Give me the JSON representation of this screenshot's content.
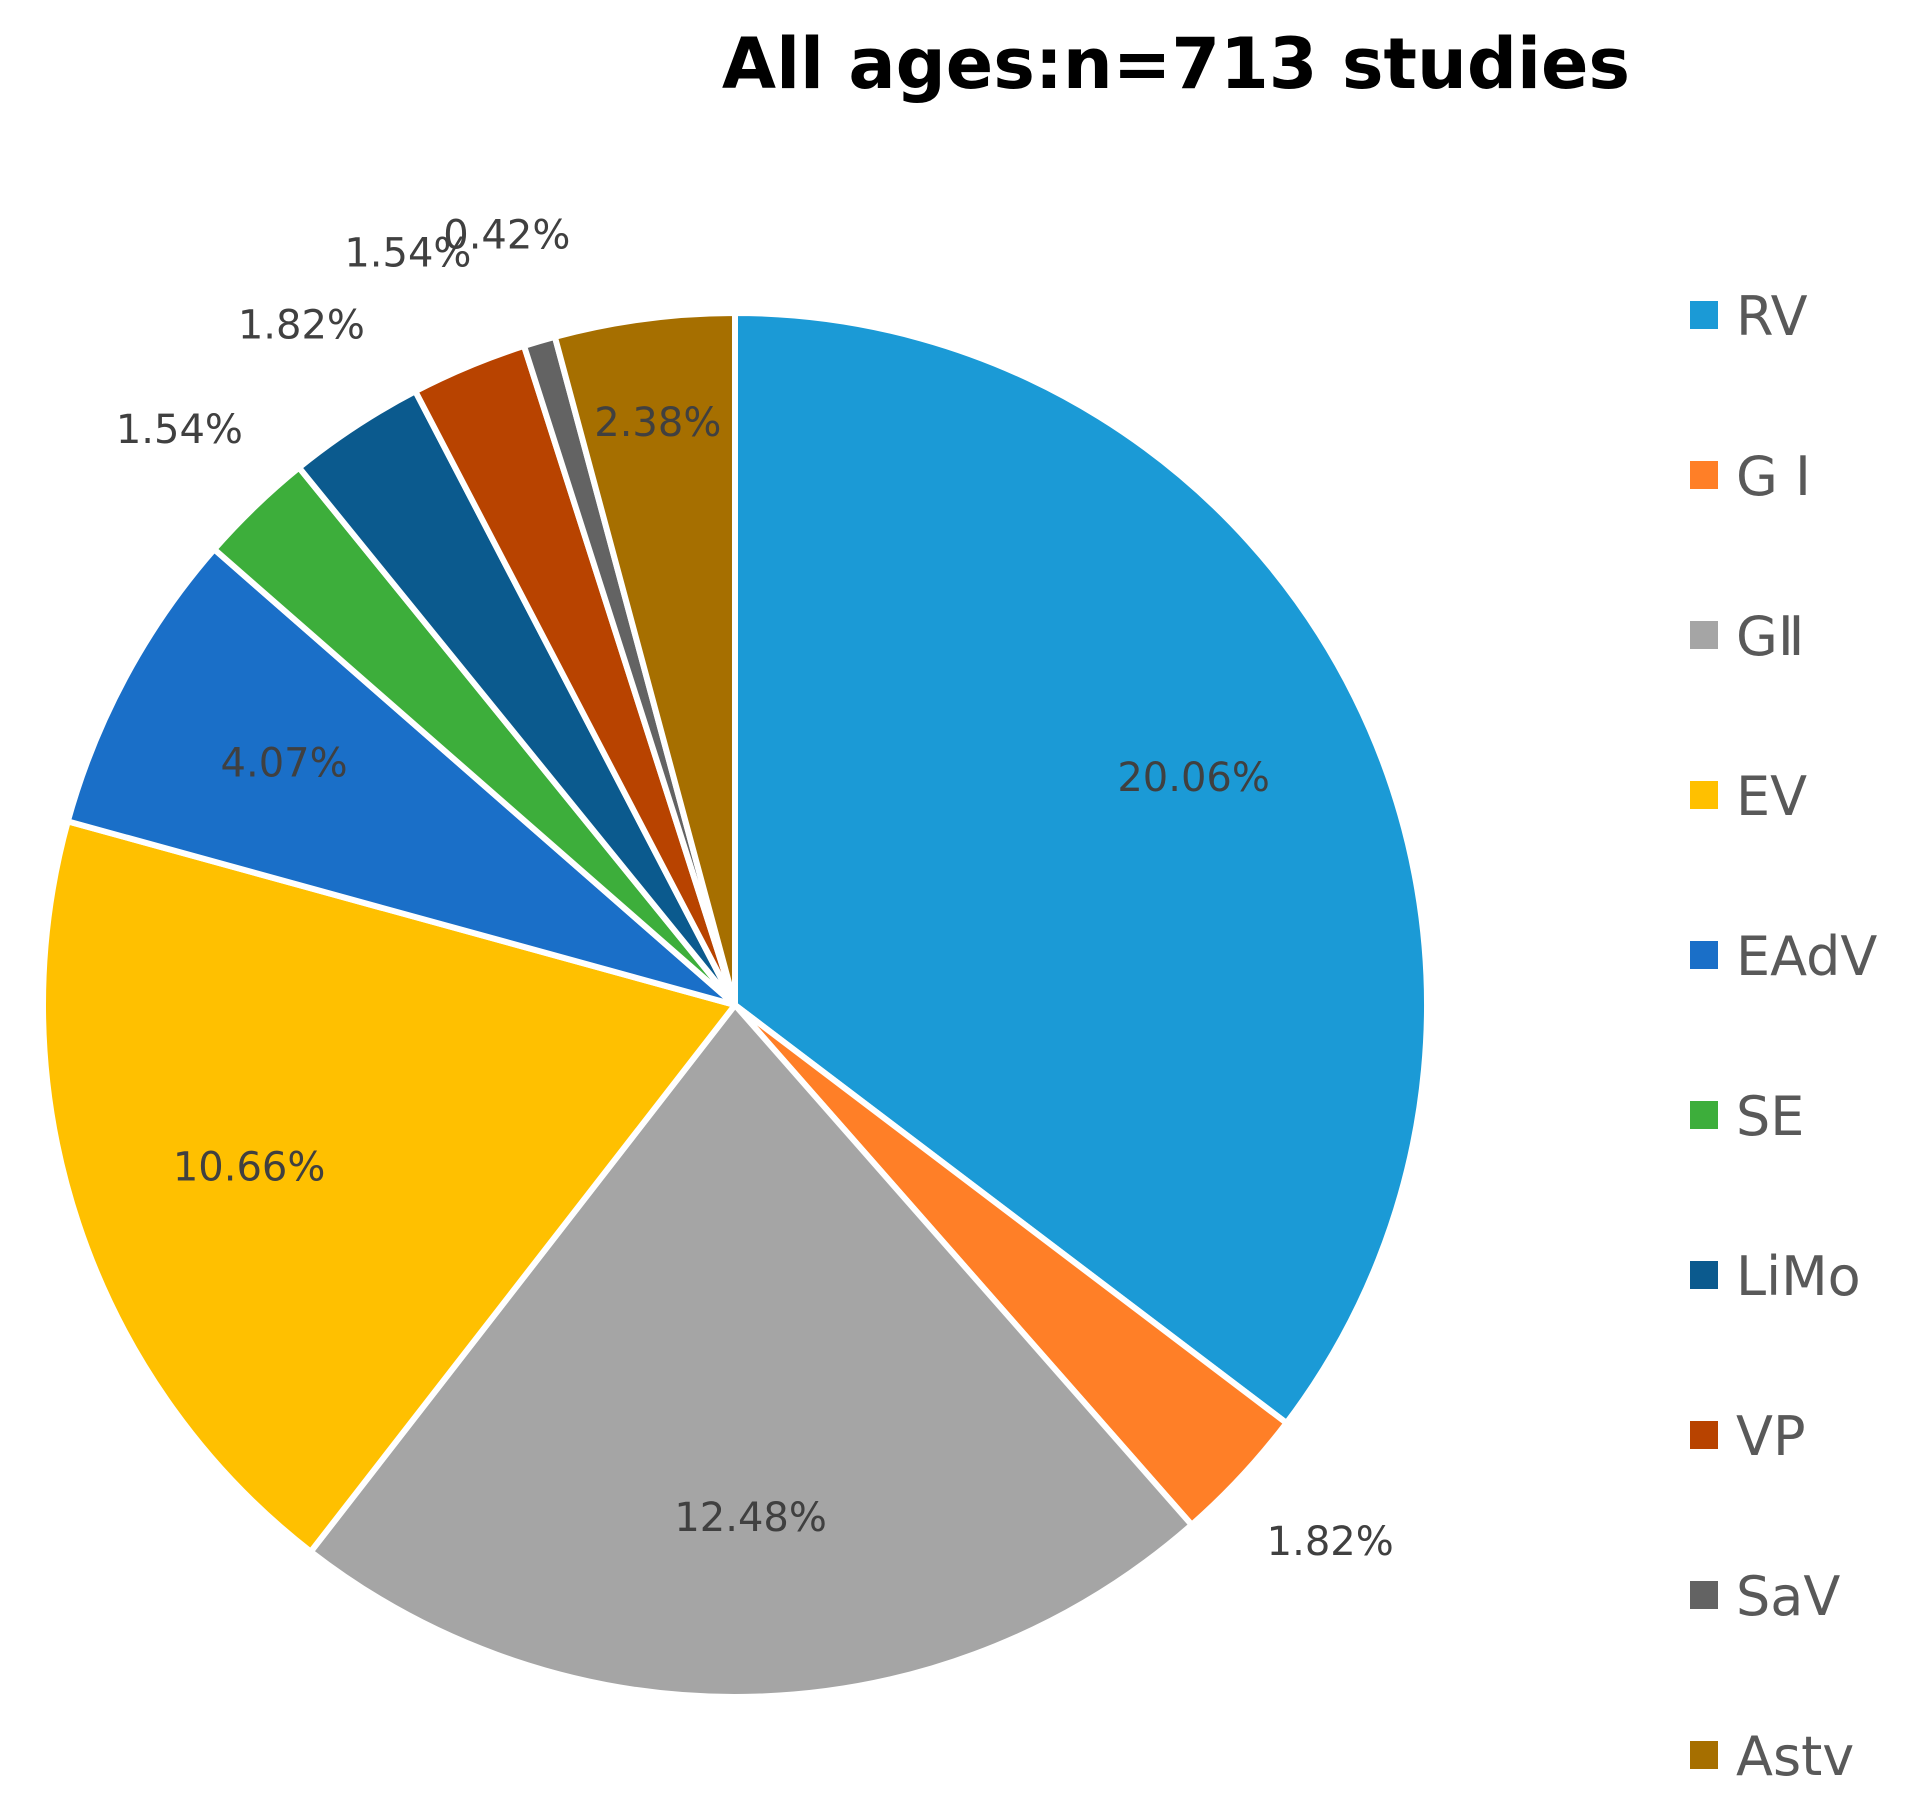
{
  "chart_data": {
    "type": "pie",
    "title": "All ages:n=713 studies",
    "start_angle_deg": 0,
    "direction": "clockwise",
    "slices": [
      {
        "name": "RV",
        "value": 20.06,
        "label": "20.06%",
        "color": "#1B9AD6",
        "label_pos": "inside"
      },
      {
        "name": "G Ⅰ",
        "value": 1.82,
        "label": "1.82%",
        "color": "#FF7F27",
        "label_pos": "outside"
      },
      {
        "name": "GⅡ",
        "value": 12.48,
        "label": "12.48%",
        "color": "#A5A5A5",
        "label_pos": "inside"
      },
      {
        "name": "EV",
        "value": 10.66,
        "label": "10.66%",
        "color": "#FFC000",
        "label_pos": "inside"
      },
      {
        "name": "EAdV",
        "value": 4.07,
        "label": "4.07%",
        "color": "#1A6FC8",
        "label_pos": "inside"
      },
      {
        "name": "SE",
        "value": 1.54,
        "label": "1.54%",
        "color": "#3DAE3B",
        "label_pos": "outside"
      },
      {
        "name": "LiMo",
        "value": 1.82,
        "label": "1.82%",
        "color": "#0B5A8E",
        "label_pos": "outside"
      },
      {
        "name": "VP",
        "value": 1.54,
        "label": "1.54%",
        "color": "#B84300",
        "label_pos": "outside"
      },
      {
        "name": "SaV",
        "value": 0.42,
        "label": "0.42%",
        "color": "#636363",
        "label_pos": "outside"
      },
      {
        "name": "Astv",
        "value": 2.38,
        "label": "2.38%",
        "color": "#A66F00",
        "label_pos": "inside"
      }
    ],
    "legend": {
      "position": "right",
      "entries": [
        "RV",
        "G Ⅰ",
        "GⅡ",
        "EV",
        "EAdV",
        "SE",
        "LiMo",
        "VP",
        "SaV",
        "Astv"
      ]
    }
  }
}
